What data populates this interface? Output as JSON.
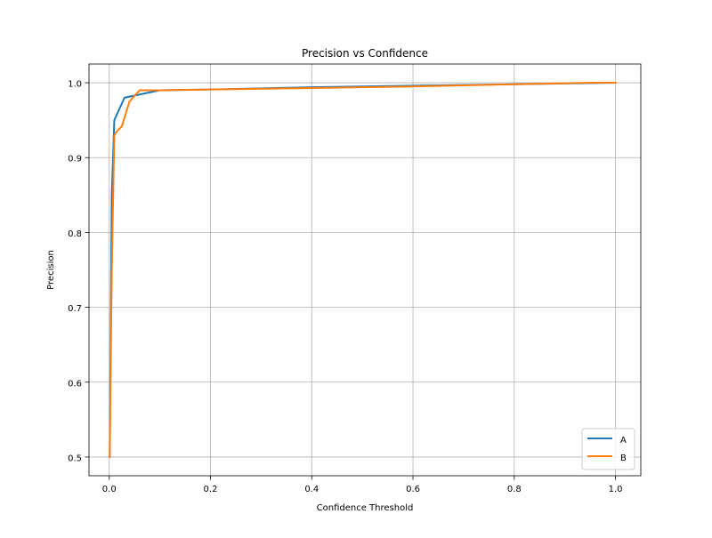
{
  "chart_data": {
    "type": "line",
    "title": "Precision vs Confidence",
    "xlabel": "Confidence Threshold",
    "ylabel": "Precision",
    "xlim": [
      -0.04,
      1.05
    ],
    "ylim": [
      0.475,
      1.025
    ],
    "xticks": [
      0.0,
      0.2,
      0.4,
      0.6,
      0.8,
      1.0
    ],
    "xtick_labels": [
      "0.0",
      "0.2",
      "0.4",
      "0.6",
      "0.8",
      "1.0"
    ],
    "yticks": [
      0.5,
      0.6,
      0.7,
      0.8,
      0.9,
      1.0
    ],
    "ytick_labels": [
      "0.5",
      "0.6",
      "0.7",
      "0.8",
      "0.9",
      "1.0"
    ],
    "grid": true,
    "legend_position": "lower-right",
    "series": [
      {
        "name": "A",
        "color": "#1f77b4",
        "x": [
          0.001,
          0.005,
          0.01,
          0.03,
          0.1,
          0.2,
          0.4,
          0.6,
          0.8,
          1.0
        ],
        "y": [
          0.5,
          0.85,
          0.95,
          0.98,
          0.99,
          0.991,
          0.994,
          0.996,
          0.998,
          1.0
        ]
      },
      {
        "name": "B",
        "color": "#ff7f0e",
        "x": [
          0.001,
          0.005,
          0.01,
          0.015,
          0.025,
          0.04,
          0.06,
          0.1,
          0.2,
          0.4,
          0.6,
          0.8,
          0.95,
          1.0
        ],
        "y": [
          0.5,
          0.75,
          0.93,
          0.935,
          0.942,
          0.975,
          0.99,
          0.99,
          0.991,
          0.993,
          0.995,
          0.998,
          1.0,
          1.0
        ]
      }
    ]
  }
}
